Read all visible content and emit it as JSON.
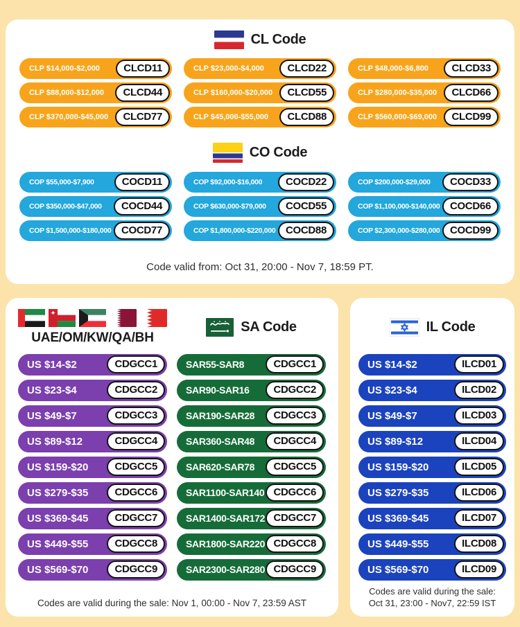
{
  "colors": {
    "page_background": "#FBE3AB",
    "card_background": "#FFFFFF",
    "cl_orange": "#F7A41C",
    "co_blue": "#23A7DC",
    "gcc_purple": "#7B3FAE",
    "sa_green": "#166C38",
    "il_blue": "#1C43BE",
    "code_pill_border": "#141414",
    "code_text": "#111111"
  },
  "top_card": {
    "cl": {
      "title": "CL Code",
      "flag": "chile-flag",
      "pills": [
        {
          "amount": "CLP $14,000-$2,000",
          "code": "CLCD11"
        },
        {
          "amount": "CLP $23,000-$4,000",
          "code": "CLCD22"
        },
        {
          "amount": "CLP $48,000-$6,800",
          "code": "CLCD33"
        },
        {
          "amount": "CLP $88,000-$12,000",
          "code": "CLCD44"
        },
        {
          "amount": "CLP $160,000-$20,000",
          "code": "CLCD55"
        },
        {
          "amount": "CLP $280,000-$35,000",
          "code": "CLCD66"
        },
        {
          "amount": "CLP $370,000-$45,000",
          "code": "CLCD77"
        },
        {
          "amount": "CLP $45,000-$55,000",
          "code": "CLCD88"
        },
        {
          "amount": "CLP $560,000-$69,000",
          "code": "CLCD99"
        }
      ]
    },
    "co": {
      "title": "CO Code",
      "flag": "colombia-flag",
      "pills": [
        {
          "amount": "COP $55,000-$7,900",
          "code": "COCD11"
        },
        {
          "amount": "COP $92,000-$16,000",
          "code": "COCD22"
        },
        {
          "amount": "COP $200,000-$29,000",
          "code": "COCD33"
        },
        {
          "amount": "COP $350,000-$47,000",
          "code": "COCD44"
        },
        {
          "amount": "COP $630,000-$79,000",
          "code": "COCD55"
        },
        {
          "amount": "COP $1,100,000-$140,000",
          "code": "COCD66"
        },
        {
          "amount": "COP $1,500,000-$180,000",
          "code": "COCD77"
        },
        {
          "amount": "COP $1,800,000-$220,000",
          "code": "COCD88"
        },
        {
          "amount": "COP $2,300,000-$280,000",
          "code": "COCD99"
        }
      ]
    },
    "validity": "Code valid from: Oct 31, 20:00 - Nov 7, 18:59 PT."
  },
  "bottom_left_card": {
    "gcc": {
      "title": "UAE/OM/KW/QA/BH",
      "flags": [
        "uae-flag",
        "oman-flag",
        "kuwait-flag",
        "qatar-flag",
        "bahrain-flag"
      ],
      "pills": [
        {
          "amount": "US $14-$2",
          "code": "CDGCC1"
        },
        {
          "amount": "US $23-$4",
          "code": "CDGCC2"
        },
        {
          "amount": "US $49-$7",
          "code": "CDGCC3"
        },
        {
          "amount": "US $89-$12",
          "code": "CDGCC4"
        },
        {
          "amount": "US $159-$20",
          "code": "CDGCC5"
        },
        {
          "amount": "US $279-$35",
          "code": "CDGCC6"
        },
        {
          "amount": "US $369-$45",
          "code": "CDGCC7"
        },
        {
          "amount": "US $449-$55",
          "code": "CDGCC8"
        },
        {
          "amount": "US $569-$70",
          "code": "CDGCC9"
        }
      ]
    },
    "sa": {
      "title": "SA Code",
      "flag": "saudi-arabia-flag",
      "pills": [
        {
          "amount": "SAR55-SAR8",
          "code": "CDGCC1"
        },
        {
          "amount": "SAR90-SAR16",
          "code": "CDGCC2"
        },
        {
          "amount": "SAR190-SAR28",
          "code": "CDGCC3"
        },
        {
          "amount": "SAR360-SAR48",
          "code": "CDGCC4"
        },
        {
          "amount": "SAR620-SAR78",
          "code": "CDGCC5"
        },
        {
          "amount": "SAR1100-SAR140",
          "code": "CDGCC6"
        },
        {
          "amount": "SAR1400-SAR172",
          "code": "CDGCC7"
        },
        {
          "amount": "SAR1800-SAR220",
          "code": "CDGCC8"
        },
        {
          "amount": "SAR2300-SAR280",
          "code": "CDGCC9"
        }
      ]
    },
    "validity": "Codes are valid during the sale: Nov 1, 00:00 - Nov 7, 23:59 AST"
  },
  "bottom_right_card": {
    "il": {
      "title": "IL Code",
      "flag": "israel-flag",
      "pills": [
        {
          "amount": "US $14-$2",
          "code": "ILCD01"
        },
        {
          "amount": "US $23-$4",
          "code": "ILCD02"
        },
        {
          "amount": "US $49-$7",
          "code": "ILCD03"
        },
        {
          "amount": "US $89-$12",
          "code": "ILCD04"
        },
        {
          "amount": "US $159-$20",
          "code": "ILCD05"
        },
        {
          "amount": "US $279-$35",
          "code": "ILCD06"
        },
        {
          "amount": "US $369-$45",
          "code": "ILCD07"
        },
        {
          "amount": "US $449-$55",
          "code": "ILCD08"
        },
        {
          "amount": "US $569-$70",
          "code": "ILCD09"
        }
      ]
    },
    "validity_line1": "Codes are valid during the sale:",
    "validity_line2": "Oct 31, 23:00 - Nov7, 22:59 IST"
  }
}
